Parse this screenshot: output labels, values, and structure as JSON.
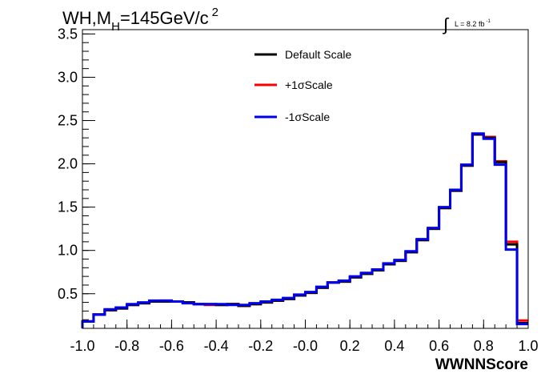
{
  "chart_data": {
    "type": "line",
    "title_main": "WH,M",
    "title_sub": "H",
    "title_rest": "=145GeV/c",
    "title_sup": "2",
    "lumi_symbol": "∫",
    "lumi_text": "L = 8.2 fb",
    "lumi_sup": "-1",
    "xlabel": "WWNNScore",
    "xlim": [
      -1.0,
      1.0
    ],
    "ylim": [
      0.1,
      3.55
    ],
    "x_ticks": [
      "-1.0",
      "-0.8",
      "-0.6",
      "-0.4",
      "-0.2",
      "-0.0",
      "0.2",
      "0.4",
      "0.6",
      "0.8",
      "1.0"
    ],
    "y_ticks": [
      "0.5",
      "1.0",
      "1.5",
      "2.0",
      "2.5",
      "3.0",
      "3.5"
    ],
    "legend_position": "top-center",
    "bin_edges": [
      -1.0,
      -0.95,
      -0.9,
      -0.85,
      -0.8,
      -0.75,
      -0.7,
      -0.65,
      -0.6,
      -0.55,
      -0.5,
      -0.45,
      -0.4,
      -0.35,
      -0.3,
      -0.25,
      -0.2,
      -0.15,
      -0.1,
      -0.05,
      0.0,
      0.05,
      0.1,
      0.15,
      0.2,
      0.25,
      0.3,
      0.35,
      0.4,
      0.45,
      0.5,
      0.55,
      0.6,
      0.65,
      0.7,
      0.75,
      0.8,
      0.85,
      0.9,
      0.95,
      1.0
    ],
    "series": [
      {
        "name": "Default Scale",
        "color": "#000000",
        "values": [
          0.1,
          0.18,
          0.26,
          0.31,
          0.33,
          0.37,
          0.39,
          0.41,
          0.41,
          0.41,
          0.4,
          0.38,
          0.38,
          0.37,
          0.38,
          0.36,
          0.38,
          0.4,
          0.42,
          0.44,
          0.48,
          0.51,
          0.57,
          0.63,
          0.64,
          0.69,
          0.73,
          0.77,
          0.84,
          0.88,
          0.98,
          1.12,
          1.25,
          1.49,
          1.69,
          1.98,
          2.34,
          2.3,
          2.02,
          1.07,
          0.16
        ]
      },
      {
        "name": "+1σScale",
        "color": "#ff0000",
        "values": [
          0.1,
          0.18,
          0.26,
          0.31,
          0.33,
          0.37,
          0.39,
          0.41,
          0.42,
          0.41,
          0.4,
          0.38,
          0.37,
          0.37,
          0.38,
          0.36,
          0.38,
          0.4,
          0.42,
          0.44,
          0.48,
          0.51,
          0.57,
          0.63,
          0.64,
          0.69,
          0.73,
          0.77,
          0.84,
          0.88,
          0.98,
          1.12,
          1.25,
          1.49,
          1.69,
          1.98,
          2.34,
          2.31,
          2.03,
          1.1,
          0.19
        ]
      },
      {
        "name": "-1σScale",
        "color": "#0000ee",
        "values": [
          0.1,
          0.18,
          0.26,
          0.32,
          0.34,
          0.38,
          0.4,
          0.42,
          0.42,
          0.41,
          0.39,
          0.38,
          0.38,
          0.38,
          0.37,
          0.37,
          0.39,
          0.41,
          0.43,
          0.45,
          0.49,
          0.52,
          0.58,
          0.63,
          0.65,
          0.7,
          0.74,
          0.78,
          0.85,
          0.89,
          0.99,
          1.13,
          1.26,
          1.5,
          1.7,
          1.99,
          2.35,
          2.29,
          1.99,
          1.01,
          0.15
        ]
      }
    ]
  }
}
